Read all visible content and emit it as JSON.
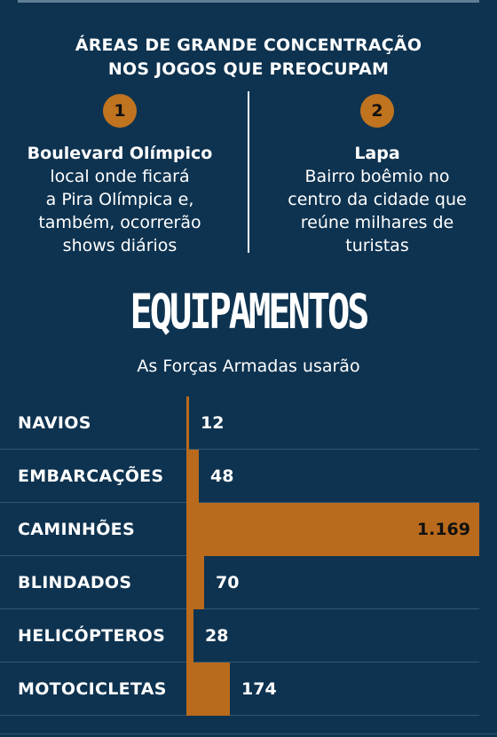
{
  "areas": {
    "title_line1": "ÁREAS DE GRANDE CONCENTRAÇÃO",
    "title_line2": "NOS JOGOS QUE PREOCUPAM",
    "items": [
      {
        "number": "1",
        "name": "Boulevard Olímpico",
        "lines": [
          "local onde ficará",
          "a Pira Olímpica e,",
          "também, ocorrerão",
          "shows diários"
        ]
      },
      {
        "number": "2",
        "name": "Lapa",
        "lines": [
          "Bairro boêmio no",
          "centro da cidade que",
          "reúne milhares de",
          "turistas"
        ]
      }
    ]
  },
  "colors": {
    "background": "#0e3350",
    "bar": "#b96a1c",
    "badge": "#c0741f"
  },
  "chart_data": {
    "type": "bar",
    "orientation": "horizontal",
    "title": "EQUIPAMENTOS",
    "subtitle": "As Forças Armadas usarão",
    "categories": [
      "NAVIOS",
      "EMBARCAÇÕES",
      "CAMINHÕES",
      "BLINDADOS",
      "HELICÓPTEROS",
      "MOTOCICLETAS"
    ],
    "values": [
      12,
      48,
      1169,
      70,
      28,
      174
    ],
    "value_labels": [
      "12",
      "48",
      "1.169",
      "70",
      "28",
      "174"
    ],
    "xlim": [
      0,
      1169
    ],
    "grid": false,
    "legend": "none"
  }
}
